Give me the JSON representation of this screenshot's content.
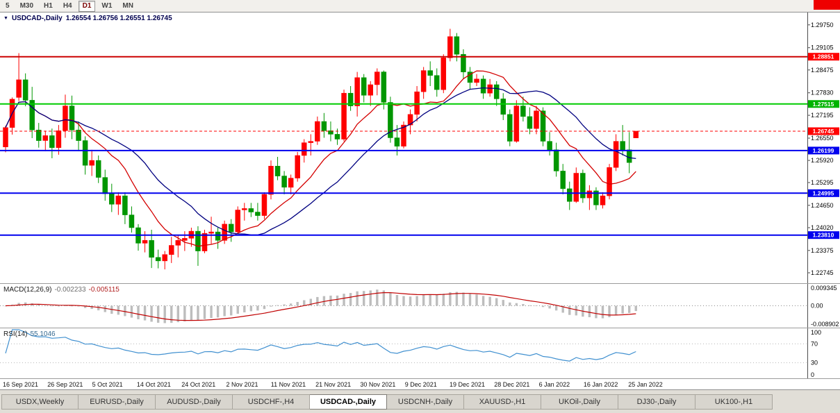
{
  "toolbar": {
    "timeframes": [
      {
        "label": "5",
        "active": false
      },
      {
        "label": "M30",
        "active": false
      },
      {
        "label": "H1",
        "active": false
      },
      {
        "label": "H4",
        "active": false
      },
      {
        "label": "D1",
        "active": true
      },
      {
        "label": "W1",
        "active": false
      },
      {
        "label": "MN",
        "active": false
      }
    ]
  },
  "chart_data": {
    "type": "candlestick",
    "symbol_label": "USDCAD-,Daily",
    "quote_text": "1.26554 1.26756 1.26551 1.26745",
    "quote": {
      "open": "1.26554",
      "high": "1.26756",
      "low": "1.26551",
      "close": "1.26745"
    },
    "up_color": "#fe0000",
    "down_color": "#009600",
    "ma": [
      {
        "period": 10,
        "color": "#d40000"
      },
      {
        "period": 20,
        "color": "#000080"
      }
    ],
    "price_axis": {
      "min": 1.2245,
      "max": 1.301,
      "ticks": [
        "1.29750",
        "1.29105",
        "1.28475",
        "1.27830",
        "1.27195",
        "1.26550",
        "1.25920",
        "1.25295",
        "1.24650",
        "1.24020",
        "1.23375",
        "1.22745"
      ]
    },
    "hlines": [
      {
        "name": "resistance-line",
        "value": 1.28851,
        "label": "1.28851",
        "color": "#cc0000",
        "tag": "#ff0000"
      },
      {
        "name": "pivot-line",
        "value": 1.27515,
        "label": "1.27515",
        "color": "#00cc00",
        "tag": "#00b400"
      },
      {
        "name": "support-line-1",
        "value": 1.26199,
        "label": "1.26199",
        "color": "#0000ee",
        "tag": "#0000ee"
      },
      {
        "name": "support-line-2",
        "value": 1.24995,
        "label": "1.24995",
        "color": "#0000ee",
        "tag": "#0000ee"
      },
      {
        "name": "support-line-3",
        "value": 1.2381,
        "label": "1.23810",
        "color": "#0000ee",
        "tag": "#0000ee"
      }
    ],
    "current_price": {
      "value": 1.26745,
      "label": "1.26745",
      "tag": "#ff0000"
    },
    "candles": [
      [
        1.263,
        1.269,
        1.2615,
        1.2685
      ],
      [
        1.2685,
        1.277,
        1.2665,
        1.2765
      ],
      [
        1.277,
        1.2895,
        1.276,
        1.282
      ],
      [
        1.282,
        1.2838,
        1.2745,
        1.2762
      ],
      [
        1.2762,
        1.28,
        1.2655,
        1.2678
      ],
      [
        1.2678,
        1.2698,
        1.2628,
        1.2648
      ],
      [
        1.2648,
        1.2676,
        1.2618,
        1.2662
      ],
      [
        1.2662,
        1.2682,
        1.2598,
        1.2628
      ],
      [
        1.2628,
        1.2692,
        1.2608,
        1.2676
      ],
      [
        1.2676,
        1.2778,
        1.2656,
        1.2746
      ],
      [
        1.2746,
        1.2775,
        1.2652,
        1.2678
      ],
      [
        1.2678,
        1.2702,
        1.2618,
        1.2648
      ],
      [
        1.2648,
        1.266,
        1.2552,
        1.2578
      ],
      [
        1.2578,
        1.2622,
        1.2548,
        1.2592
      ],
      [
        1.2592,
        1.2606,
        1.2528,
        1.2544
      ],
      [
        1.2544,
        1.2566,
        1.2478,
        1.2498
      ],
      [
        1.2498,
        1.2526,
        1.2446,
        1.2468
      ],
      [
        1.2468,
        1.2502,
        1.2438,
        1.2492
      ],
      [
        1.2492,
        1.2502,
        1.2412,
        1.2438
      ],
      [
        1.2438,
        1.2462,
        1.2388,
        1.2402
      ],
      [
        1.2402,
        1.2412,
        1.2337,
        1.2358
      ],
      [
        1.2358,
        1.2392,
        1.2332,
        1.2366
      ],
      [
        1.2366,
        1.2396,
        1.2288,
        1.2318
      ],
      [
        1.2318,
        1.234,
        1.2287,
        1.2308
      ],
      [
        1.2308,
        1.2336,
        1.2284,
        1.2326
      ],
      [
        1.2326,
        1.2376,
        1.2302,
        1.2352
      ],
      [
        1.2352,
        1.2382,
        1.2318,
        1.2366
      ],
      [
        1.2366,
        1.2392,
        1.2336,
        1.2372
      ],
      [
        1.2372,
        1.2402,
        1.2348,
        1.2392
      ],
      [
        1.2392,
        1.2406,
        1.2294,
        1.2336
      ],
      [
        1.2336,
        1.2396,
        1.233,
        1.2386
      ],
      [
        1.2386,
        1.2433,
        1.2356,
        1.239
      ],
      [
        1.239,
        1.2402,
        1.2342,
        1.2366
      ],
      [
        1.2366,
        1.2422,
        1.2356,
        1.2412
      ],
      [
        1.2412,
        1.2426,
        1.2362,
        1.239
      ],
      [
        1.239,
        1.2462,
        1.2386,
        1.2452
      ],
      [
        1.2452,
        1.2472,
        1.2422,
        1.2456
      ],
      [
        1.2456,
        1.2472,
        1.2432,
        1.2446
      ],
      [
        1.2446,
        1.2472,
        1.2422,
        1.2436
      ],
      [
        1.2436,
        1.2502,
        1.2426,
        1.2496
      ],
      [
        1.2496,
        1.2592,
        1.2482,
        1.2576
      ],
      [
        1.2576,
        1.2602,
        1.2536,
        1.2548
      ],
      [
        1.2548,
        1.2562,
        1.2496,
        1.2516
      ],
      [
        1.2516,
        1.2552,
        1.2496,
        1.2542
      ],
      [
        1.2542,
        1.2616,
        1.2532,
        1.2606
      ],
      [
        1.2606,
        1.2652,
        1.2586,
        1.2642
      ],
      [
        1.2642,
        1.2666,
        1.2606,
        1.2646
      ],
      [
        1.2646,
        1.2716,
        1.2636,
        1.2702
      ],
      [
        1.2702,
        1.2726,
        1.2656,
        1.2676
      ],
      [
        1.2676,
        1.2702,
        1.2646,
        1.2666
      ],
      [
        1.2666,
        1.2682,
        1.2636,
        1.2652
      ],
      [
        1.2652,
        1.2792,
        1.2646,
        1.2782
      ],
      [
        1.2782,
        1.2802,
        1.2732,
        1.2746
      ],
      [
        1.2746,
        1.2842,
        1.2716,
        1.2826
      ],
      [
        1.2826,
        1.2836,
        1.2756,
        1.2776
      ],
      [
        1.2776,
        1.2816,
        1.2746,
        1.2806
      ],
      [
        1.2806,
        1.2852,
        1.2776,
        1.2842
      ],
      [
        1.2842,
        1.2846,
        1.2736,
        1.2756
      ],
      [
        1.2756,
        1.2772,
        1.2642,
        1.2656
      ],
      [
        1.2656,
        1.2692,
        1.2606,
        1.2632
      ],
      [
        1.2632,
        1.2702,
        1.2626,
        1.2692
      ],
      [
        1.2692,
        1.2736,
        1.2666,
        1.2722
      ],
      [
        1.2722,
        1.2802,
        1.2702,
        1.2786
      ],
      [
        1.2786,
        1.2856,
        1.2766,
        1.2846
      ],
      [
        1.2846,
        1.2872,
        1.2802,
        1.2832
      ],
      [
        1.2832,
        1.2852,
        1.2772,
        1.2792
      ],
      [
        1.2792,
        1.2892,
        1.2782,
        1.2882
      ],
      [
        1.2882,
        1.2964,
        1.2872,
        1.2942
      ],
      [
        1.2942,
        1.2952,
        1.2872,
        1.2892
      ],
      [
        1.2892,
        1.2906,
        1.2822,
        1.2842
      ],
      [
        1.2842,
        1.2856,
        1.2792,
        1.2812
      ],
      [
        1.2812,
        1.2836,
        1.2802,
        1.2822
      ],
      [
        1.2822,
        1.2832,
        1.2766,
        1.2782
      ],
      [
        1.2782,
        1.2822,
        1.2772,
        1.2806
      ],
      [
        1.2806,
        1.2816,
        1.2746,
        1.2766
      ],
      [
        1.2766,
        1.2782,
        1.2706,
        1.2722
      ],
      [
        1.2722,
        1.2736,
        1.2632,
        1.2646
      ],
      [
        1.2646,
        1.2762,
        1.2642,
        1.2746
      ],
      [
        1.2746,
        1.2772,
        1.2702,
        1.2716
      ],
      [
        1.2716,
        1.2742,
        1.2666,
        1.2682
      ],
      [
        1.2682,
        1.2746,
        1.2666,
        1.2732
      ],
      [
        1.2732,
        1.2742,
        1.2632,
        1.2646
      ],
      [
        1.2646,
        1.2672,
        1.2606,
        1.2622
      ],
      [
        1.2622,
        1.2642,
        1.2546,
        1.2562
      ],
      [
        1.2562,
        1.2582,
        1.2496,
        1.2512
      ],
      [
        1.2512,
        1.2532,
        1.2452,
        1.2476
      ],
      [
        1.2476,
        1.2572,
        1.2472,
        1.2556
      ],
      [
        1.2556,
        1.2566,
        1.2472,
        1.2486
      ],
      [
        1.2486,
        1.2522,
        1.2452,
        1.2506
      ],
      [
        1.2506,
        1.2516,
        1.2452,
        1.2466
      ],
      [
        1.2466,
        1.2502,
        1.2456,
        1.2492
      ],
      [
        1.2492,
        1.2582,
        1.2482,
        1.2572
      ],
      [
        1.2572,
        1.2666,
        1.2562,
        1.2646
      ],
      [
        1.2646,
        1.2692,
        1.2606,
        1.2622
      ],
      [
        1.2622,
        1.2672,
        1.2556,
        1.2586
      ],
      [
        1.26554,
        1.26756,
        1.26551,
        1.26745
      ]
    ]
  },
  "macd": {
    "name": "MACD(12,26,9)",
    "value_main": "-0.002233",
    "value_signal": "-0.005115",
    "axis_top": "0.009345",
    "axis_mid": "0.00",
    "axis_bottom": "-0.008902",
    "hist_color": "#bdbdbd",
    "signal_color": "#c00000",
    "fast": 12,
    "slow": 26,
    "smoothing": 9
  },
  "rsi": {
    "name": "RSI(14)",
    "value": "55.1046",
    "period": 14,
    "axis": [
      "100",
      "70",
      "30",
      "0"
    ],
    "axis_values": [
      100,
      70,
      30,
      0
    ],
    "levels": [
      70,
      30
    ],
    "line_color": "#4090d0"
  },
  "time_axis": {
    "labels": [
      "16 Sep 2021",
      "26 Sep 2021",
      "5 Oct 2021",
      "14 Oct 2021",
      "24 Oct 2021",
      "2 Nov 2021",
      "11 Nov 2021",
      "21 Nov 2021",
      "30 Nov 2021",
      "9 Dec 2021",
      "19 Dec 2021",
      "28 Dec 2021",
      "6 Jan 2022",
      "16 Jan 2022",
      "25 Jan 2022"
    ]
  },
  "tabs": [
    {
      "label": "USDX,Weekly",
      "active": false
    },
    {
      "label": "EURUSD-,Daily",
      "active": false
    },
    {
      "label": "AUDUSD-,Daily",
      "active": false
    },
    {
      "label": "USDCHF-,H4",
      "active": false
    },
    {
      "label": "USDCAD-,Daily",
      "active": true
    },
    {
      "label": "USDCNH-,Daily",
      "active": false
    },
    {
      "label": "XAUUSD-,H1",
      "active": false
    },
    {
      "label": "UKOil-,Daily",
      "active": false
    },
    {
      "label": "DJ30-,Daily",
      "active": false
    },
    {
      "label": "UK100-,H1",
      "active": false
    }
  ]
}
